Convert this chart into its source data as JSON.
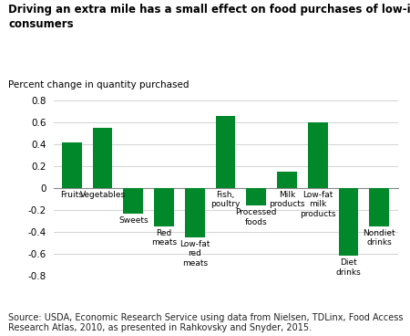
{
  "title": "Driving an extra mile has a small effect on food purchases of low-income/low-access\nconsumers",
  "ylabel": "Percent change in quantity purchased",
  "categories": [
    "Fruits",
    "Vegetables",
    "Sweets",
    "Red\nmeats",
    "Low-fat\nred\nmeats",
    "Fish,\npoultry",
    "Processed\nfoods",
    "Milk\nproducts",
    "Low-fat\nmilk\nproducts",
    "Diet\ndrinks",
    "Nondiet\ndrinks"
  ],
  "values": [
    0.42,
    0.55,
    -0.23,
    -0.35,
    -0.45,
    0.665,
    -0.16,
    0.155,
    0.6,
    -0.62,
    -0.35
  ],
  "bar_color": "#00882B",
  "ylim": [
    -0.8,
    0.8
  ],
  "yticks": [
    -0.8,
    -0.6,
    -0.4,
    -0.2,
    0.0,
    0.2,
    0.4,
    0.6,
    0.8
  ],
  "source": "Source: USDA, Economic Research Service using data from Nielsen, TDLinx, Food Access\nResearch Atlas, 2010, as presented in Rahkovsky and Snyder, 2015.",
  "title_fontsize": 8.5,
  "ylabel_fontsize": 7.5,
  "tick_fontsize": 7.5,
  "bar_label_fontsize": 6.5,
  "source_fontsize": 7,
  "background_color": "#ffffff"
}
